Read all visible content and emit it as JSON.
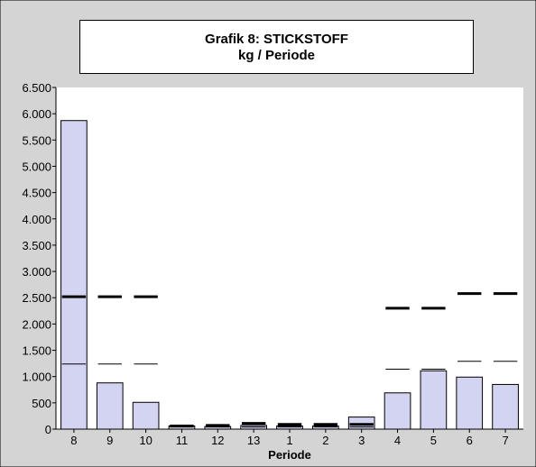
{
  "chart_data": {
    "type": "bar",
    "title": "Grafik 8: STICKSTOFF",
    "subtitle": "kg / Periode",
    "xlabel": "Periode",
    "ylabel": "",
    "ylim": [
      0,
      6500
    ],
    "yticks": [
      0,
      500,
      1000,
      1500,
      2000,
      2500,
      3000,
      3500,
      4000,
      4500,
      5000,
      5500,
      6000,
      6500
    ],
    "ytick_labels": [
      "0",
      "500",
      "1.000",
      "1.500",
      "2.000",
      "2.500",
      "3.000",
      "3.500",
      "4.000",
      "4.500",
      "5.000",
      "5.500",
      "6.000",
      "6.500"
    ],
    "categories": [
      "8",
      "9",
      "10",
      "11",
      "12",
      "13",
      "1",
      "2",
      "3",
      "4",
      "5",
      "6",
      "7"
    ],
    "values": [
      5870,
      880,
      510,
      60,
      50,
      70,
      60,
      60,
      230,
      690,
      1110,
      990,
      850
    ],
    "reference_thick": [
      2520,
      2520,
      2520,
      60,
      70,
      110,
      90,
      90,
      90,
      2300,
      2300,
      2580,
      2580
    ],
    "reference_thin": [
      1240,
      1240,
      1240,
      40,
      40,
      40,
      40,
      40,
      40,
      1140,
      1140,
      1290,
      1290
    ],
    "colors": {
      "bar_fill": "#d3d3f2",
      "bar_stroke": "#000000",
      "plot_bg": "#ffffff",
      "frame_bg": "#d4d4d4",
      "ref_line": "#000000"
    },
    "grid": false,
    "legend": "none"
  }
}
